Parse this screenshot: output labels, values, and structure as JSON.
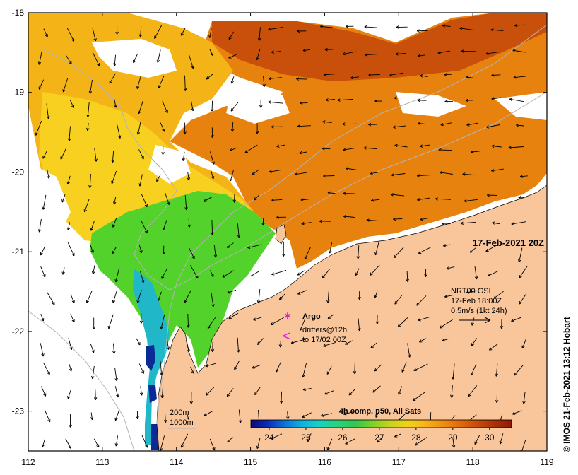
{
  "map": {
    "title_datetime": "17-Feb-2021 20Z",
    "x_axis": {
      "ticks": [
        "112",
        "113",
        "114",
        "115",
        "116",
        "117",
        "118",
        "119"
      ],
      "range": [
        112,
        119
      ]
    },
    "y_axis": {
      "ticks": [
        "-18",
        "-19",
        "-20",
        "-21",
        "-22",
        "-23"
      ],
      "range": [
        -23.5,
        -18
      ]
    },
    "copyright": "© IMOS 21-Feb-2021 13:12 Hobart",
    "velocity_legend": {
      "line1": "NRT00 GSL",
      "line2": "17-Feb 18:00Z",
      "line3": "0.5m/s (1kt 24h)"
    },
    "argo": {
      "symbol": "✱",
      "label": "Argo"
    },
    "drifters": {
      "symbol": "<",
      "line1": "drifters@12h",
      "line2": "to 17/02 00Z"
    },
    "bathymetry": {
      "contour1": "200m",
      "contour2": "1000m"
    },
    "colorbar": {
      "title": "4h comp, p50, All Sats",
      "ticks": [
        "24",
        "25",
        "26",
        "27",
        "28",
        "29",
        "30"
      ],
      "range": [
        23.5,
        30.6
      ],
      "colors": [
        "#0a0a78",
        "#0c2fb8",
        "#0a78d8",
        "#10b4e0",
        "#18d2c0",
        "#28d27a",
        "#30c850",
        "#7ad22a",
        "#c8d21e",
        "#f0d218",
        "#f8b418",
        "#f09010",
        "#e06c0c",
        "#c84c0a",
        "#a83206",
        "#901a04"
      ]
    },
    "colors": {
      "land": "#f9c59a",
      "warm": "#e8820e",
      "hot": "#c8500a",
      "mid": "#f4b418",
      "yellow": "#f8d020",
      "green": "#52d22a",
      "cyan": "#20b8c8",
      "blue": "#0a2a96",
      "contour": "#b4b4b4"
    }
  }
}
